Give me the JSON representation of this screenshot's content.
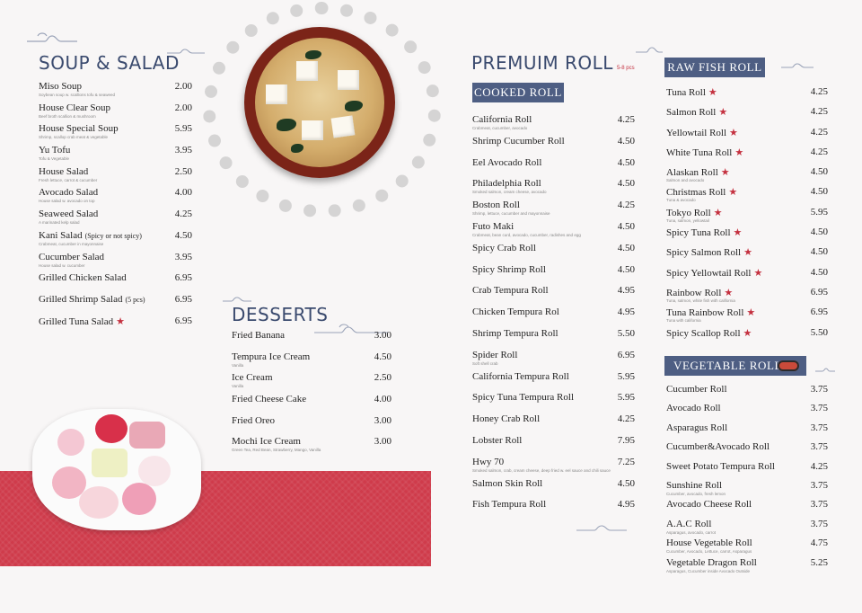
{
  "soup_salad": {
    "title": "SOUP & SALAD",
    "items": [
      {
        "name": "Miso Soup",
        "desc": "Soybean soup w. scallions tofu & seaweed",
        "price": "2.00"
      },
      {
        "name": "House Clear Soup",
        "desc": "Beef broth scallion & mushroom",
        "price": "2.00"
      },
      {
        "name": "House Special Soup",
        "desc": "Shrimp, scallop crab meat & vegetable",
        "price": "5.95"
      },
      {
        "name": "Yu Tofu",
        "desc": "Tofu & Vegetable",
        "price": "3.95"
      },
      {
        "name": "House Salad",
        "desc": "Fresh lettuce, carrot & cucumber",
        "price": "2.50"
      },
      {
        "name": "Avocado Salad",
        "desc": "House salad w. avocado on top",
        "price": "4.00"
      },
      {
        "name": "Seaweed  Salad",
        "desc": "A marinated kelp salad",
        "price": "4.25"
      },
      {
        "name": "Kani Salad",
        "sub": "(Spicy or not spicy)",
        "desc": "Crabmeat, cucumber in mayonnaise",
        "price": "4.50"
      },
      {
        "name": "Cucumber Salad",
        "desc": "House salad w. cucumber",
        "price": "3.95"
      },
      {
        "name": "Grilled Chicken Salad",
        "desc": "",
        "price": "6.95"
      },
      {
        "name": "Grilled Shrimp Salad",
        "sub": "(5 pcs)",
        "desc": "",
        "price": "6.95"
      },
      {
        "name": "Grilled Tuna Salad",
        "star": true,
        "desc": "",
        "price": "6.95"
      }
    ]
  },
  "desserts": {
    "title": "DESSERTS",
    "items": [
      {
        "name": "Fried Banana",
        "desc": "",
        "price": "3.00"
      },
      {
        "name": "Tempura Ice Cream",
        "desc": "Vanilla",
        "price": "4.50"
      },
      {
        "name": "Ice Cream",
        "desc": "Vanilla",
        "price": "2.50"
      },
      {
        "name": "Fried Cheese Cake",
        "desc": "",
        "price": "4.00"
      },
      {
        "name": "Fried Oreo",
        "desc": "",
        "price": "3.00"
      },
      {
        "name": "Mochi Ice Cream",
        "desc": "Green Tea, Red Bean, Strawberry, Mango, Vanilla",
        "price": "3.00"
      }
    ]
  },
  "premium_roll": {
    "title": "PREMUIM ROLL",
    "subtitle": "5-8 pcs",
    "cooked_label": "COOKED ROLL",
    "items": [
      {
        "name": "California Roll",
        "desc": "Crabmeat, cucumber, avocado",
        "price": "4.25"
      },
      {
        "name": "Shrimp Cucumber Roll",
        "desc": "",
        "price": "4.50"
      },
      {
        "name": "Eel Avocado Roll",
        "desc": "",
        "price": "4.50"
      },
      {
        "name": "Philadelphia Roll",
        "desc": "Smoked salmon, cream cheese, avocado",
        "price": "4.50"
      },
      {
        "name": "Boston Roll",
        "desc": "Shrimp, lettuce, cucumber and mayonnaise",
        "price": "4.25"
      },
      {
        "name": "Futo Maki",
        "desc": "Crabmeat, bean curd, avocado, cucumber, radishes and egg",
        "price": "4.50"
      },
      {
        "name": "Spicy Crab Roll",
        "desc": "",
        "price": "4.50"
      },
      {
        "name": "Spicy Shrimp Roll",
        "desc": "",
        "price": "4.50"
      },
      {
        "name": "Crab Tempura Roll",
        "desc": "",
        "price": "4.95"
      },
      {
        "name": "Chicken Tempura Rol",
        "desc": "",
        "price": "4.95"
      },
      {
        "name": "Shrimp Tempura Roll",
        "desc": "",
        "price": "5.50"
      },
      {
        "name": "Spider Roll",
        "desc": "Soft shell crab",
        "price": "6.95"
      },
      {
        "name": "California Tempura Roll",
        "desc": "",
        "price": "5.95"
      },
      {
        "name": "Spicy Tuna Tempura Roll",
        "desc": "",
        "price": "5.95"
      },
      {
        "name": "Honey Crab Roll",
        "desc": "",
        "price": "4.25"
      },
      {
        "name": "Lobster Roll",
        "desc": "",
        "price": "7.95"
      },
      {
        "name": "Hwy 70",
        "desc": "Smoked salmon, crab, cream cheese, deep fried w. eel sauce and chili sauce",
        "price": "7.25"
      },
      {
        "name": "Salmon Skin Roll",
        "desc": "",
        "price": "4.50"
      },
      {
        "name": "Fish Tempura Roll",
        "desc": "",
        "price": "4.95"
      }
    ]
  },
  "raw_fish_roll": {
    "title": "RAW FISH ROLL",
    "items": [
      {
        "name": "Tuna Roll",
        "star": true,
        "desc": "",
        "price": "4.25"
      },
      {
        "name": "Salmon Roll",
        "star": true,
        "desc": "",
        "price": "4.25"
      },
      {
        "name": "Yellowtail Roll",
        "star": true,
        "desc": "",
        "price": "4.25"
      },
      {
        "name": "White Tuna Roll",
        "star": true,
        "desc": "",
        "price": "4.25"
      },
      {
        "name": "Alaskan Roll",
        "star": true,
        "desc": "Salmon and avocado",
        "price": "4.50"
      },
      {
        "name": "Christmas Roll",
        "star": true,
        "desc": "Tuna & avocado",
        "price": "4.50"
      },
      {
        "name": "Tokyo Roll",
        "star": true,
        "desc": "Tuna, salmon, yellowtail",
        "price": "5.95"
      },
      {
        "name": "Spicy Tuna Roll",
        "star": true,
        "desc": "",
        "price": "4.50"
      },
      {
        "name": "Spicy Salmon Roll",
        "star": true,
        "desc": "",
        "price": "4.50"
      },
      {
        "name": "Spicy Yellowtail Roll",
        "star": true,
        "desc": "",
        "price": "4.50"
      },
      {
        "name": "Rainbow Roll",
        "star": true,
        "desc": "Tuna, salmon, white fish with california",
        "price": "6.95"
      },
      {
        "name": "Tuna Rainbow Roll",
        "star": true,
        "desc": "Tuna with california",
        "price": "6.95"
      },
      {
        "name": "Spicy Scallop Roll",
        "star": true,
        "desc": "",
        "price": "5.50"
      }
    ]
  },
  "vegetable_rolls": {
    "title": "VEGETABLE ROLLS",
    "items": [
      {
        "name": "Cucumber Roll",
        "desc": "",
        "price": "3.75"
      },
      {
        "name": "Avocado Roll",
        "desc": "",
        "price": "3.75"
      },
      {
        "name": "Asparagus Roll",
        "desc": "",
        "price": "3.75"
      },
      {
        "name": "Cucumber&Avocado Roll",
        "desc": "",
        "price": "3.75"
      },
      {
        "name": "Sweet Potato Tempura Roll",
        "desc": "",
        "price": "4.25"
      },
      {
        "name": "Sunshine Roll",
        "desc": "Cucumber, avocado, fresh lemon",
        "price": "3.75"
      },
      {
        "name": "Avocado Cheese Roll",
        "desc": "",
        "price": "3.75"
      },
      {
        "name": "A.A.C Roll",
        "desc": "Asparagus, avocado, carrot",
        "price": "3.75"
      },
      {
        "name": "House Vegetable Roll",
        "desc": "Cucumber, Avocado, Lettuce, carrot, Asparagus",
        "price": "4.75"
      },
      {
        "name": "Vegetable Dragon Roll",
        "desc": "Asparagus, Cucumber inside Avocado Outside",
        "price": "5.25"
      }
    ]
  },
  "colors": {
    "navy": "#4e5e83",
    "red": "#cf3b4b",
    "star": "#c4303f"
  }
}
